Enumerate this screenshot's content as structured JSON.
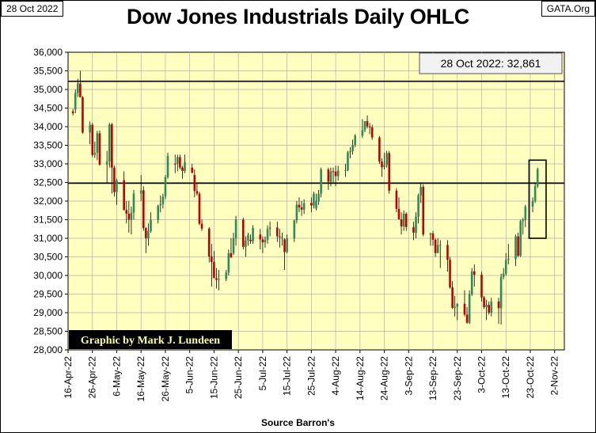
{
  "header": {
    "date_tag": "28 Oct 2022",
    "site_tag": "GATA.Org",
    "title": "Dow Jones Industrials Daily OHLC"
  },
  "annotation": "28 Oct 2022: 32,861",
  "credit": "Graphic by Mark J. Lundeen",
  "source": "Source Barron's",
  "colors": {
    "plot_bg": "#FFFFC0",
    "up": "#2E8B57",
    "down": "#C00000",
    "grid": "#B0B0B0"
  },
  "chart_data": {
    "type": "ohlc",
    "title": "Dow Jones Industrials Daily OHLC",
    "xlabel": "Source Barron's",
    "ylabel": "",
    "ylim": [
      28000,
      36000
    ],
    "yticks": [
      28000,
      28500,
      29000,
      29500,
      30000,
      30500,
      31000,
      31500,
      32000,
      32500,
      33000,
      33500,
      34000,
      34500,
      35000,
      35500,
      36000
    ],
    "ytick_labels": [
      "28,000",
      "28,500",
      "29,000",
      "29,500",
      "30,000",
      "30,500",
      "31,000",
      "31,500",
      "32,000",
      "32,500",
      "33,000",
      "33,500",
      "34,000",
      "34,500",
      "35,000",
      "35,500",
      "36,000"
    ],
    "x_range_days": [
      0,
      204
    ],
    "xticks": [
      {
        "label": "16-Apr-22",
        "day": 0
      },
      {
        "label": "26-Apr-22",
        "day": 10
      },
      {
        "label": "6-May-22",
        "day": 20
      },
      {
        "label": "16-May-22",
        "day": 30
      },
      {
        "label": "26-May-22",
        "day": 40
      },
      {
        "label": "5-Jun-22",
        "day": 50
      },
      {
        "label": "15-Jun-22",
        "day": 60
      },
      {
        "label": "25-Jun-22",
        "day": 70
      },
      {
        "label": "5-Jul-22",
        "day": 80
      },
      {
        "label": "15-Jul-22",
        "day": 90
      },
      {
        "label": "25-Jul-22",
        "day": 100
      },
      {
        "label": "4-Aug-22",
        "day": 110
      },
      {
        "label": "14-Aug-22",
        "day": 120
      },
      {
        "label": "24-Aug-22",
        "day": 130
      },
      {
        "label": "3-Sep-22",
        "day": 140
      },
      {
        "label": "13-Sep-22",
        "day": 150
      },
      {
        "label": "23-Sep-22",
        "day": 160
      },
      {
        "label": "3-Oct-22",
        "day": 170
      },
      {
        "label": "13-Oct-22",
        "day": 180
      },
      {
        "label": "23-Oct-22",
        "day": 190
      },
      {
        "label": "2-Nov-22",
        "day": 200
      }
    ],
    "reference_lines": [
      {
        "name": "upper-reference",
        "value": 35220
      },
      {
        "name": "lower-reference",
        "value": 32480
      }
    ],
    "highlight_box": {
      "day_start": 189.5,
      "day_end": 196.5,
      "low": 31000,
      "high": 33100
    },
    "ohlc": [
      [
        2,
        34410,
        34480,
        34300,
        34360
      ],
      [
        3,
        34460,
        35000,
        34360,
        34910
      ],
      [
        4,
        34900,
        35290,
        34800,
        35160
      ],
      [
        5,
        35160,
        35500,
        34850,
        34790
      ],
      [
        6,
        34790,
        34820,
        33810,
        33840
      ],
      [
        9,
        33840,
        34140,
        33530,
        34050
      ],
      [
        10,
        34050,
        34100,
        33180,
        33240
      ],
      [
        11,
        33240,
        33600,
        33160,
        33300
      ],
      [
        12,
        33300,
        33890,
        33100,
        33820
      ],
      [
        13,
        33820,
        33900,
        32950,
        32980
      ],
      [
        16,
        32980,
        33350,
        32500,
        33060
      ],
      [
        17,
        33060,
        34100,
        32900,
        34060
      ],
      [
        18,
        34060,
        34100,
        32200,
        32900
      ],
      [
        19,
        32900,
        32950,
        32120,
        32240
      ],
      [
        20,
        32240,
        32600,
        31900,
        32560
      ],
      [
        23,
        32560,
        32800,
        31750,
        31760
      ],
      [
        24,
        31760,
        32000,
        31400,
        31660
      ],
      [
        25,
        31660,
        32000,
        31150,
        31500
      ],
      [
        26,
        31500,
        31850,
        31100,
        31690
      ],
      [
        27,
        31690,
        32300,
        31500,
        32200
      ],
      [
        30,
        32200,
        32700,
        32000,
        32290
      ],
      [
        31,
        32290,
        32400,
        31200,
        31270
      ],
      [
        32,
        31270,
        31300,
        30600,
        31000
      ],
      [
        33,
        31000,
        31400,
        30800,
        31190
      ],
      [
        34,
        31190,
        31700,
        31150,
        31490
      ],
      [
        37,
        31490,
        31900,
        31400,
        31880
      ],
      [
        38,
        31880,
        32150,
        31700,
        31920
      ],
      [
        39,
        31920,
        32200,
        31800,
        32120
      ],
      [
        40,
        32120,
        32700,
        32050,
        32640
      ],
      [
        41,
        32640,
        33300,
        32600,
        33210
      ],
      [
        44,
        33000,
        33250,
        32750,
        32990
      ],
      [
        45,
        33000,
        33250,
        32800,
        33180
      ],
      [
        46,
        33180,
        33250,
        32850,
        32900
      ],
      [
        47,
        32900,
        32950,
        32600,
        32810
      ],
      [
        48,
        32810,
        33250,
        32750,
        33050
      ],
      [
        51,
        32900,
        33000,
        32750,
        32760
      ],
      [
        52,
        32700,
        32850,
        32100,
        32270
      ],
      [
        53,
        32270,
        32500,
        32150,
        32200
      ],
      [
        54,
        32200,
        32250,
        31350,
        31390
      ],
      [
        55,
        31390,
        31500,
        31200,
        31260
      ],
      [
        58,
        31260,
        31300,
        30350,
        30510
      ],
      [
        59,
        30510,
        30850,
        29700,
        30360
      ],
      [
        60,
        30360,
        30660,
        29950,
        29930
      ],
      [
        61,
        29930,
        30200,
        29650,
        29880
      ],
      [
        62,
        29880,
        30150,
        29600,
        29900
      ],
      [
        65,
        29900,
        30150,
        29850,
        30080
      ],
      [
        66,
        30080,
        30700,
        30000,
        30600
      ],
      [
        67,
        30600,
        31000,
        30500,
        30480
      ],
      [
        68,
        30600,
        31150,
        30550,
        31000
      ],
      [
        69,
        31000,
        31600,
        30800,
        31500
      ],
      [
        72,
        31500,
        31550,
        30700,
        30770
      ],
      [
        73,
        30770,
        31050,
        30500,
        30940
      ],
      [
        74,
        30940,
        31150,
        30800,
        31090
      ],
      [
        75,
        30960,
        31100,
        30850,
        30920
      ],
      [
        76,
        30920,
        31350,
        30850,
        31280
      ],
      [
        79,
        31100,
        31250,
        30700,
        30970
      ],
      [
        80,
        30970,
        31050,
        30600,
        30890
      ],
      [
        81,
        30890,
        31050,
        30750,
        30960
      ],
      [
        82,
        30960,
        31350,
        30850,
        31250
      ],
      [
        83,
        31250,
        31450,
        31050,
        31290
      ],
      [
        86,
        31290,
        31450,
        30900,
        31050
      ],
      [
        87,
        31050,
        31250,
        30750,
        31030
      ],
      [
        88,
        31030,
        31150,
        30800,
        31030
      ],
      [
        89,
        30970,
        31000,
        30150,
        30630
      ],
      [
        90,
        30630,
        31100,
        30600,
        30990
      ],
      [
        93,
        30990,
        31500,
        30900,
        31480
      ],
      [
        94,
        31480,
        32000,
        31400,
        31900
      ],
      [
        95,
        31900,
        32100,
        31700,
        31830
      ],
      [
        96,
        31830,
        32000,
        31600,
        31770
      ],
      [
        97,
        31770,
        32050,
        31650,
        31940
      ],
      [
        100,
        31950,
        32100,
        31700,
        31880
      ],
      [
        101,
        31880,
        32250,
        31800,
        32200
      ],
      [
        102,
        31800,
        32200,
        31750,
        31990
      ],
      [
        103,
        31990,
        32300,
        31900,
        32200
      ],
      [
        104,
        32200,
        32900,
        32100,
        32850
      ],
      [
        107,
        32850,
        32900,
        32300,
        32520
      ],
      [
        108,
        32520,
        32900,
        32400,
        32800
      ],
      [
        109,
        32800,
        32900,
        32500,
        32790
      ],
      [
        110,
        32790,
        32950,
        32400,
        32670
      ],
      [
        111,
        32670,
        32950,
        32550,
        32820
      ],
      [
        114,
        32820,
        33000,
        32650,
        32830
      ],
      [
        115,
        32830,
        33350,
        32800,
        33310
      ],
      [
        116,
        33310,
        33450,
        33150,
        33340
      ],
      [
        117,
        33340,
        33650,
        33250,
        33510
      ],
      [
        118,
        33510,
        33800,
        33450,
        33760
      ],
      [
        121,
        33760,
        34200,
        33700,
        33910
      ],
      [
        122,
        33910,
        34150,
        33850,
        34150
      ],
      [
        123,
        34150,
        34300,
        33950,
        34010
      ],
      [
        124,
        34000,
        34100,
        33800,
        33980
      ],
      [
        125,
        33980,
        34050,
        33650,
        33710
      ],
      [
        128,
        33710,
        33750,
        33000,
        33060
      ],
      [
        129,
        33060,
        33150,
        32650,
        32910
      ],
      [
        130,
        32910,
        33300,
        32850,
        32970
      ],
      [
        131,
        32970,
        33350,
        32900,
        33290
      ],
      [
        132,
        33290,
        33350,
        32200,
        32280
      ],
      [
        135,
        32280,
        32350,
        31700,
        31790
      ],
      [
        136,
        31790,
        32100,
        31500,
        31510
      ],
      [
        137,
        31510,
        31700,
        31100,
        31320
      ],
      [
        138,
        31320,
        31750,
        31200,
        31660
      ],
      [
        139,
        31660,
        31700,
        31200,
        31300
      ],
      [
        142,
        31300,
        31450,
        30950,
        31150
      ],
      [
        143,
        31150,
        31700,
        31000,
        31580
      ],
      [
        144,
        31580,
        32200,
        31400,
        32150
      ],
      [
        145,
        32150,
        32500,
        31950,
        32380
      ],
      [
        146,
        32380,
        32450,
        31050,
        31100
      ],
      [
        149,
        31100,
        31150,
        30800,
        31130
      ],
      [
        150,
        31130,
        31200,
        30800,
        30960
      ],
      [
        151,
        30960,
        31000,
        30500,
        30600
      ],
      [
        152,
        30600,
        31000,
        30600,
        30820
      ],
      [
        153,
        30820,
        30950,
        30200,
        30820
      ],
      [
        156,
        30820,
        30950,
        30100,
        30420
      ],
      [
        157,
        30420,
        30500,
        29650,
        29680
      ],
      [
        158,
        29680,
        29850,
        29100,
        29130
      ],
      [
        159,
        29130,
        29450,
        28900,
        29160
      ],
      [
        160,
        29160,
        29250,
        28800,
        29240
      ],
      [
        163,
        29240,
        29600,
        28900,
        28950
      ],
      [
        164,
        28950,
        29150,
        28700,
        28730
      ],
      [
        165,
        28730,
        29600,
        28700,
        29490
      ],
      [
        166,
        29490,
        30200,
        29450,
        30110
      ],
      [
        167,
        30110,
        30300,
        29700,
        30020
      ],
      [
        170,
        30020,
        30100,
        29300,
        29410
      ],
      [
        171,
        29410,
        29450,
        29100,
        29150
      ],
      [
        172,
        29150,
        29350,
        28800,
        29210
      ],
      [
        173,
        29210,
        29300,
        28950,
        29000
      ],
      [
        174,
        29000,
        29400,
        28900,
        29300
      ],
      [
        177,
        29300,
        29400,
        28700,
        29120
      ],
      [
        178,
        29120,
        30050,
        28680,
        29960
      ],
      [
        179,
        29960,
        30200,
        29900,
        30050
      ],
      [
        180,
        30050,
        30600,
        30000,
        30420
      ],
      [
        181,
        30420,
        30850,
        30300,
        30450
      ],
      [
        184,
        30450,
        31100,
        30250,
        31050
      ],
      [
        185,
        31050,
        31150,
        30500,
        30530
      ],
      [
        186,
        30530,
        31500,
        30500,
        31460
      ],
      [
        187,
        31460,
        31550,
        31100,
        31500
      ],
      [
        188,
        31500,
        31900,
        31300,
        31850
      ],
      [
        191,
        31850,
        32100,
        31700,
        32000
      ],
      [
        192,
        32000,
        32500,
        31950,
        32400
      ],
      [
        193,
        32400,
        32900,
        32350,
        32860
      ]
    ]
  }
}
